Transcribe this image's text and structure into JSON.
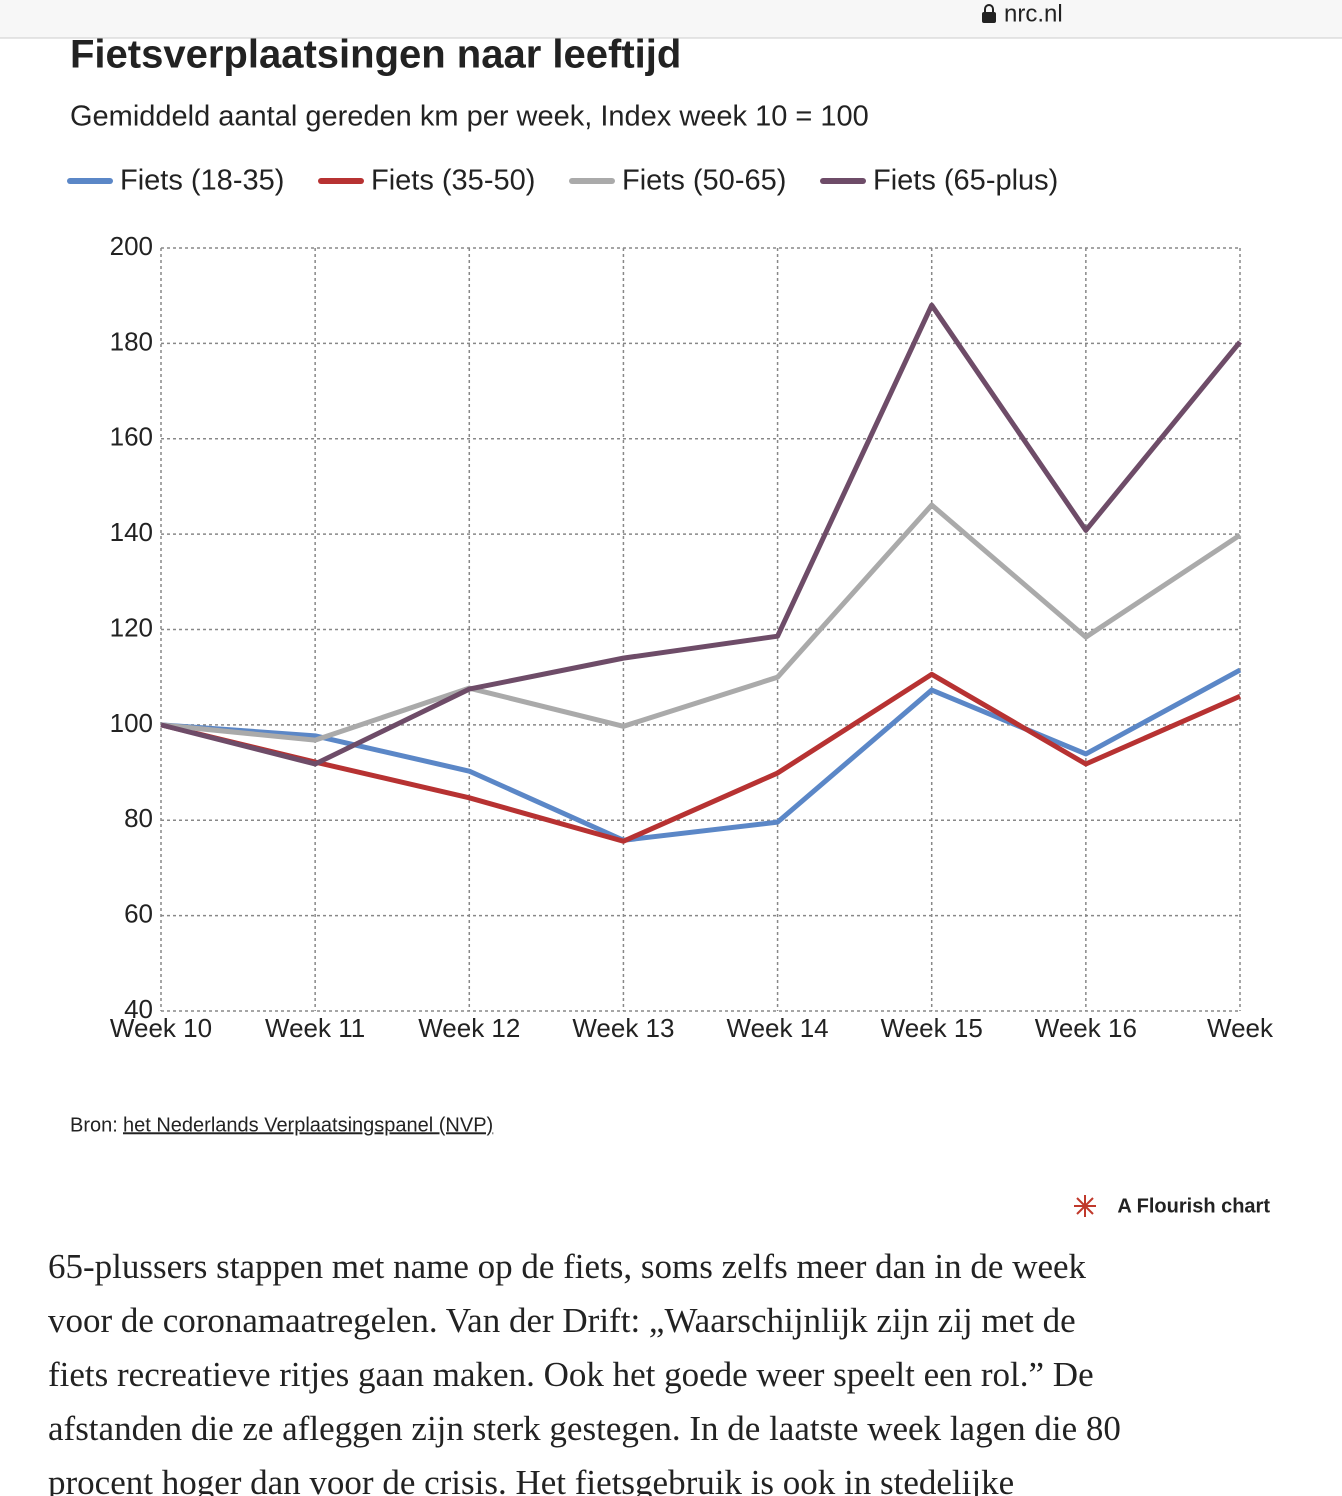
{
  "browser": {
    "url": "nrc.nl"
  },
  "chart_data": {
    "type": "line",
    "title": "Fietsverplaatsingen naar leeftijd",
    "subtitle": "Gemiddeld aantal gereden km per week, Index week 10 = 100",
    "categories": [
      "Week 10",
      "Week 11",
      "Week 12",
      "Week 13",
      "Week 14",
      "Week 15",
      "Week 16",
      "Week"
    ],
    "series": [
      {
        "name": "Fiets (18-35)",
        "color": "#5b87c7",
        "values": [
          100,
          97.7,
          90.3,
          75.8,
          79.6,
          107.3,
          93.9,
          111.5
        ]
      },
      {
        "name": "Fiets (35-50)",
        "color": "#b73232",
        "values": [
          100,
          92.2,
          84.7,
          75.6,
          89.9,
          110.6,
          91.8,
          106
        ]
      },
      {
        "name": "Fiets (50-65)",
        "color": "#aaaaaa",
        "values": [
          100,
          96.8,
          107.7,
          99.7,
          110,
          146.1,
          118.4,
          139.8
        ]
      },
      {
        "name": "Fiets (65-plus)",
        "color": "#6e4c68",
        "values": [
          100,
          91.8,
          107.5,
          114,
          118.6,
          188,
          140.8,
          180.3
        ]
      }
    ],
    "ylim": [
      40,
      200
    ],
    "yticks": [
      40,
      60,
      80,
      100,
      120,
      140,
      160,
      180,
      200
    ],
    "grid": true,
    "legend": "top"
  },
  "source": {
    "label": "Bron:",
    "link": "het Nederlands Verplaatsingspanel (NVP)"
  },
  "credit": "A Flourish chart",
  "article": {
    "lines": [
      "65-plussers stappen met name op de fiets, soms zelfs meer dan in de week",
      "voor de coronamaatregelen. Van der Drift: „Waarschijnlijk zijn zij met de",
      "fiets recreatieve ritjes gaan maken. Ook het goede weer speelt een rol.” De",
      "afstanden die ze afleggen zijn sterk gestegen. In de laatste week lagen die 80",
      "procent hoger dan voor de crisis. Het fietsgebruik is ook in stedelijke"
    ]
  }
}
